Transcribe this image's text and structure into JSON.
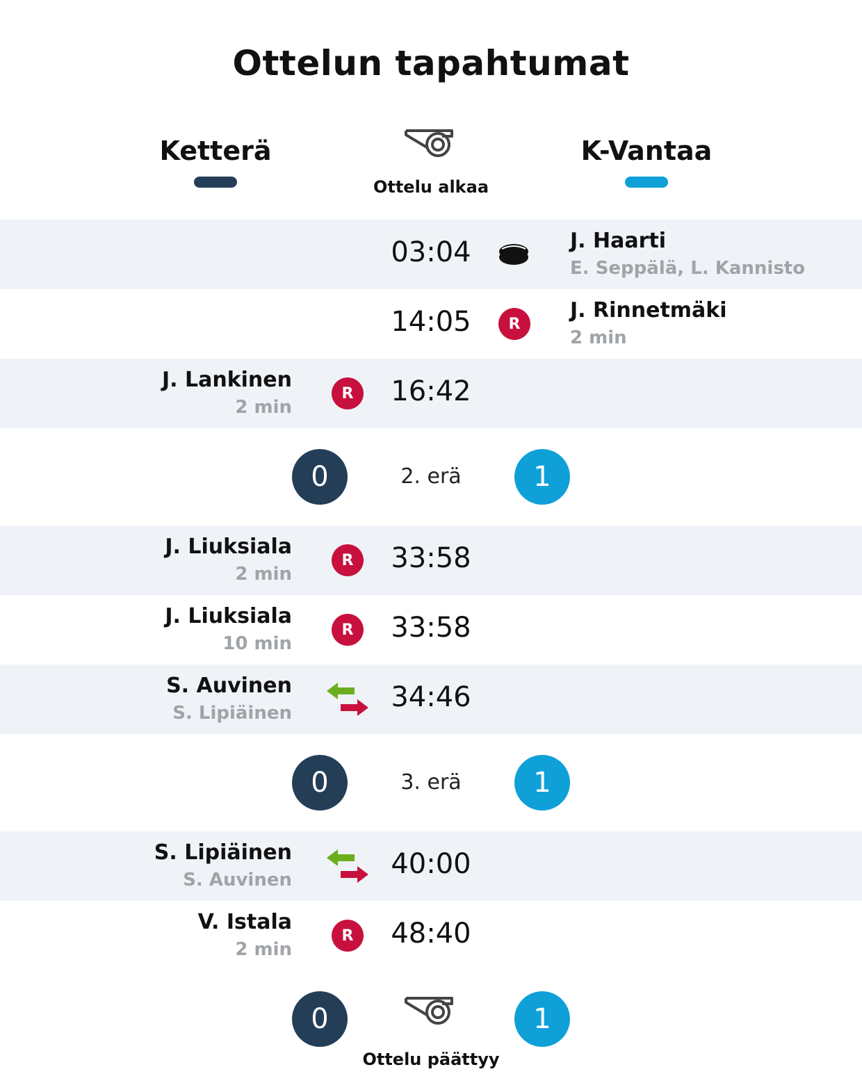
{
  "title": "Ottelun tapahtumat",
  "home_team": {
    "name": "Ketterä",
    "color": "#243e57"
  },
  "away_team": {
    "name": "K-Vantaa",
    "color": "#0fa0d8"
  },
  "start_caption": "Ottelu alkaa",
  "end_caption": "Ottelu päättyy",
  "events": [
    {
      "time": "03:04",
      "type": "goal-icon",
      "side": "away",
      "player": "J. Haarti",
      "detail": "E. Seppälä, L. Kannisto"
    },
    {
      "time": "14:05",
      "type": "penalty-icon",
      "badge": "R",
      "side": "away",
      "player": "J. Rinnetmäki",
      "detail": "2 min"
    },
    {
      "time": "16:42",
      "type": "penalty-icon",
      "badge": "R",
      "side": "home",
      "player": "J. Lankinen",
      "detail": "2 min"
    },
    {
      "time": "33:58",
      "type": "penalty-icon",
      "badge": "R",
      "side": "home",
      "player": "J. Liuksiala",
      "detail": "2 min"
    },
    {
      "time": "33:58",
      "type": "penalty-icon",
      "badge": "R",
      "side": "home",
      "player": "J. Liuksiala",
      "detail": "10 min"
    },
    {
      "time": "34:46",
      "type": "substitution-icon",
      "side": "home",
      "player": "S. Auvinen",
      "detail": "S. Lipiäinen"
    },
    {
      "time": "40:00",
      "type": "substitution-icon",
      "side": "home",
      "player": "S. Lipiäinen",
      "detail": "S. Auvinen"
    },
    {
      "time": "48:40",
      "type": "penalty-icon",
      "badge": "R",
      "side": "home",
      "player": "V. Istala",
      "detail": "2 min"
    }
  ],
  "periods": [
    {
      "label": "2. erä",
      "home_score": "0",
      "away_score": "1"
    },
    {
      "label": "3. erä",
      "home_score": "0",
      "away_score": "1"
    }
  ],
  "final_score": {
    "home": "0",
    "away": "1"
  },
  "colors": {
    "penalty": "#c8103e",
    "sub_in": "#6aae1e",
    "sub_out": "#c8103e",
    "row_shade": "#eff3f7"
  }
}
